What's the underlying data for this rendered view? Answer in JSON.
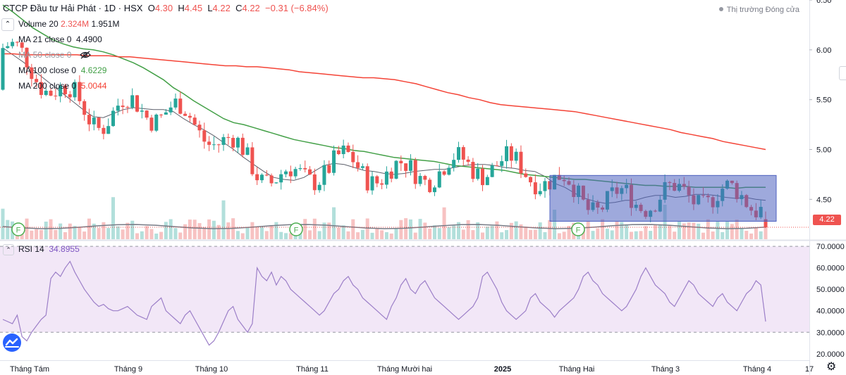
{
  "header": {
    "symbol": "CTCP Đầu tư Hải Phát · 1D · HSX",
    "open_label": "O",
    "open": "4.30",
    "high_label": "H",
    "high": "4.45",
    "low_label": "L",
    "low": "4.22",
    "close_label": "C",
    "close": "4.22",
    "change": "−0.31 (−6.84%)"
  },
  "market_status": "Thị trường Đóng cửa",
  "legend": {
    "volume": {
      "label": "Volume 20",
      "v1": "2.324M",
      "v2": "1.951M"
    },
    "ma21": {
      "label": "MA 21 close 0",
      "value": "4.4900"
    },
    "ma50": {
      "label": "MA 50 close 0",
      "icon": "eye-hidden-icon"
    },
    "ma100": {
      "label": "MA 100 close 0",
      "value": "4.6229"
    },
    "ma200": {
      "label": "MA 200 close 0",
      "value": "5.0044"
    }
  },
  "rsi_legend": {
    "label": "RSI 14",
    "value": "34.8955"
  },
  "last_price_tag": "4.22",
  "colors": {
    "up": "#26a69a",
    "down": "#ef5350",
    "ma21": "#5d606b",
    "ma100": "#43a047",
    "ma200": "#f44336",
    "rsi": "#9c7fc8",
    "rsi_band": "#f2e7f7",
    "box": "#4e62c0",
    "price_line": "#ef5350"
  },
  "chart_data": [
    {
      "type": "candlestick",
      "x_axis": {
        "tick_labels": [
          "Tháng Tám",
          "Tháng 9",
          "Tháng 10",
          "Tháng 11",
          "Tháng Mười hai",
          "2025",
          "Tháng Hai",
          "Tháng 3",
          "Tháng 4",
          "17"
        ]
      },
      "y_axis": {
        "side": "right",
        "tick_labels": [
          "6.50",
          "6.00",
          "5.50",
          "5.00",
          "4.50"
        ],
        "range": [
          4.1,
          6.5
        ],
        "last": 4.22
      },
      "series": [
        {
          "name": "MA 21 close 0",
          "values": [
            6.02,
            5.95,
            5.88,
            5.8,
            5.72,
            5.64,
            5.56,
            5.48,
            5.4,
            5.33,
            5.32,
            5.36,
            5.4,
            5.42,
            5.41,
            5.4,
            5.4,
            5.38,
            5.31,
            5.25,
            5.2,
            5.14,
            5.07,
            5.0,
            4.92,
            4.85,
            4.78,
            4.72,
            4.7,
            4.69,
            4.72,
            4.78,
            4.84,
            4.86,
            4.85,
            4.82,
            4.79,
            4.78,
            4.76,
            4.75,
            4.76,
            4.78,
            4.79,
            4.8,
            4.8,
            4.82,
            4.84,
            4.85,
            4.85,
            4.84,
            4.82,
            4.81,
            4.79,
            4.78,
            4.73,
            4.66,
            4.62,
            4.56,
            4.51,
            4.48,
            4.46,
            4.47,
            4.49,
            4.49,
            4.52,
            4.54,
            4.54,
            4.52,
            4.53,
            4.55,
            4.55,
            4.54,
            4.52,
            4.51,
            4.52,
            4.5,
            4.49
          ]
        },
        {
          "name": "MA 100 close 0",
          "values": [
            6.45,
            6.38,
            6.3,
            6.22,
            6.16,
            6.1,
            6.06,
            6.03,
            6.01,
            6.0,
            5.98,
            5.95,
            5.91,
            5.87,
            5.82,
            5.76,
            5.7,
            5.62,
            5.56,
            5.49,
            5.43,
            5.37,
            5.31,
            5.27,
            5.25,
            5.22,
            5.19,
            5.16,
            5.13,
            5.1,
            5.08,
            5.06,
            5.04,
            5.02,
            5.01,
            4.99,
            4.98,
            4.96,
            4.94,
            4.92,
            4.91,
            4.9,
            4.89,
            4.88,
            4.86,
            4.84,
            4.83,
            4.82,
            4.81,
            4.8,
            4.79,
            4.77,
            4.75,
            4.74,
            4.73,
            4.72,
            4.71,
            4.7,
            4.7,
            4.69,
            4.68,
            4.67,
            4.66,
            4.65,
            4.64,
            4.64,
            4.63,
            4.63,
            4.63,
            4.62,
            4.62,
            4.62,
            4.62,
            4.61,
            4.62,
            4.62,
            4.62
          ]
        },
        {
          "name": "MA 200 close 0",
          "values": [
            5.96,
            5.96,
            5.95,
            5.95,
            5.95,
            5.95,
            5.95,
            5.95,
            5.94,
            5.94,
            5.94,
            5.93,
            5.93,
            5.92,
            5.91,
            5.9,
            5.89,
            5.88,
            5.87,
            5.86,
            5.85,
            5.84,
            5.84,
            5.83,
            5.83,
            5.82,
            5.81,
            5.8,
            5.78,
            5.77,
            5.76,
            5.75,
            5.74,
            5.73,
            5.72,
            5.72,
            5.71,
            5.7,
            5.68,
            5.66,
            5.63,
            5.6,
            5.57,
            5.55,
            5.52,
            5.5,
            5.47,
            5.45,
            5.44,
            5.43,
            5.42,
            5.41,
            5.4,
            5.39,
            5.38,
            5.36,
            5.34,
            5.32,
            5.3,
            5.28,
            5.26,
            5.24,
            5.22,
            5.2,
            5.17,
            5.15,
            5.13,
            5.11,
            5.08,
            5.06,
            5.04,
            5.02,
            5.0
          ]
        }
      ],
      "annotations": [
        {
          "type": "rectangle",
          "range": [
            4.28,
            4.74
          ]
        }
      ],
      "markers": [
        "F",
        "F",
        "F"
      ]
    },
    {
      "type": "line",
      "title": "RSI 14",
      "y_axis": {
        "side": "right",
        "tick_labels": [
          "70.0000",
          "60.0000",
          "50.0000",
          "40.0000",
          "30.0000",
          "20.0000"
        ],
        "range": [
          17,
          72
        ]
      },
      "band": [
        30,
        70
      ],
      "series": [
        {
          "name": "RSI 14",
          "values": [
            36,
            35,
            34,
            38,
            28,
            26,
            30,
            33,
            36,
            38,
            55,
            58,
            56,
            60,
            63,
            58,
            54,
            50,
            47,
            44,
            42,
            43,
            41,
            40,
            40,
            41,
            42,
            40,
            38,
            37,
            36,
            42,
            44,
            46,
            40,
            38,
            36,
            34,
            38,
            40,
            36,
            32,
            28,
            24,
            26,
            30,
            35,
            40,
            42,
            36,
            33,
            30,
            34,
            60,
            56,
            54,
            58,
            52,
            56,
            54,
            50,
            48,
            46,
            44,
            42,
            40,
            38,
            40,
            44,
            48,
            50,
            54,
            56,
            52,
            50,
            46,
            44,
            42,
            40,
            38,
            36,
            42,
            46,
            52,
            55,
            50,
            48,
            52,
            54,
            50,
            46,
            44,
            42,
            40,
            38,
            36,
            38,
            40,
            42,
            46,
            56,
            58,
            54,
            50,
            44,
            40,
            38,
            36,
            38,
            40,
            46,
            48,
            44,
            42,
            40,
            37,
            40,
            42,
            44,
            46,
            50,
            56,
            58,
            54,
            52,
            48,
            46,
            44,
            42,
            40,
            42,
            46,
            50,
            56,
            60,
            56,
            52,
            50,
            48,
            44,
            42,
            46,
            50,
            54,
            52,
            48,
            46,
            44,
            42,
            46,
            48,
            44,
            42,
            40,
            44,
            48,
            50,
            54,
            52,
            35
          ]
        }
      ]
    }
  ]
}
